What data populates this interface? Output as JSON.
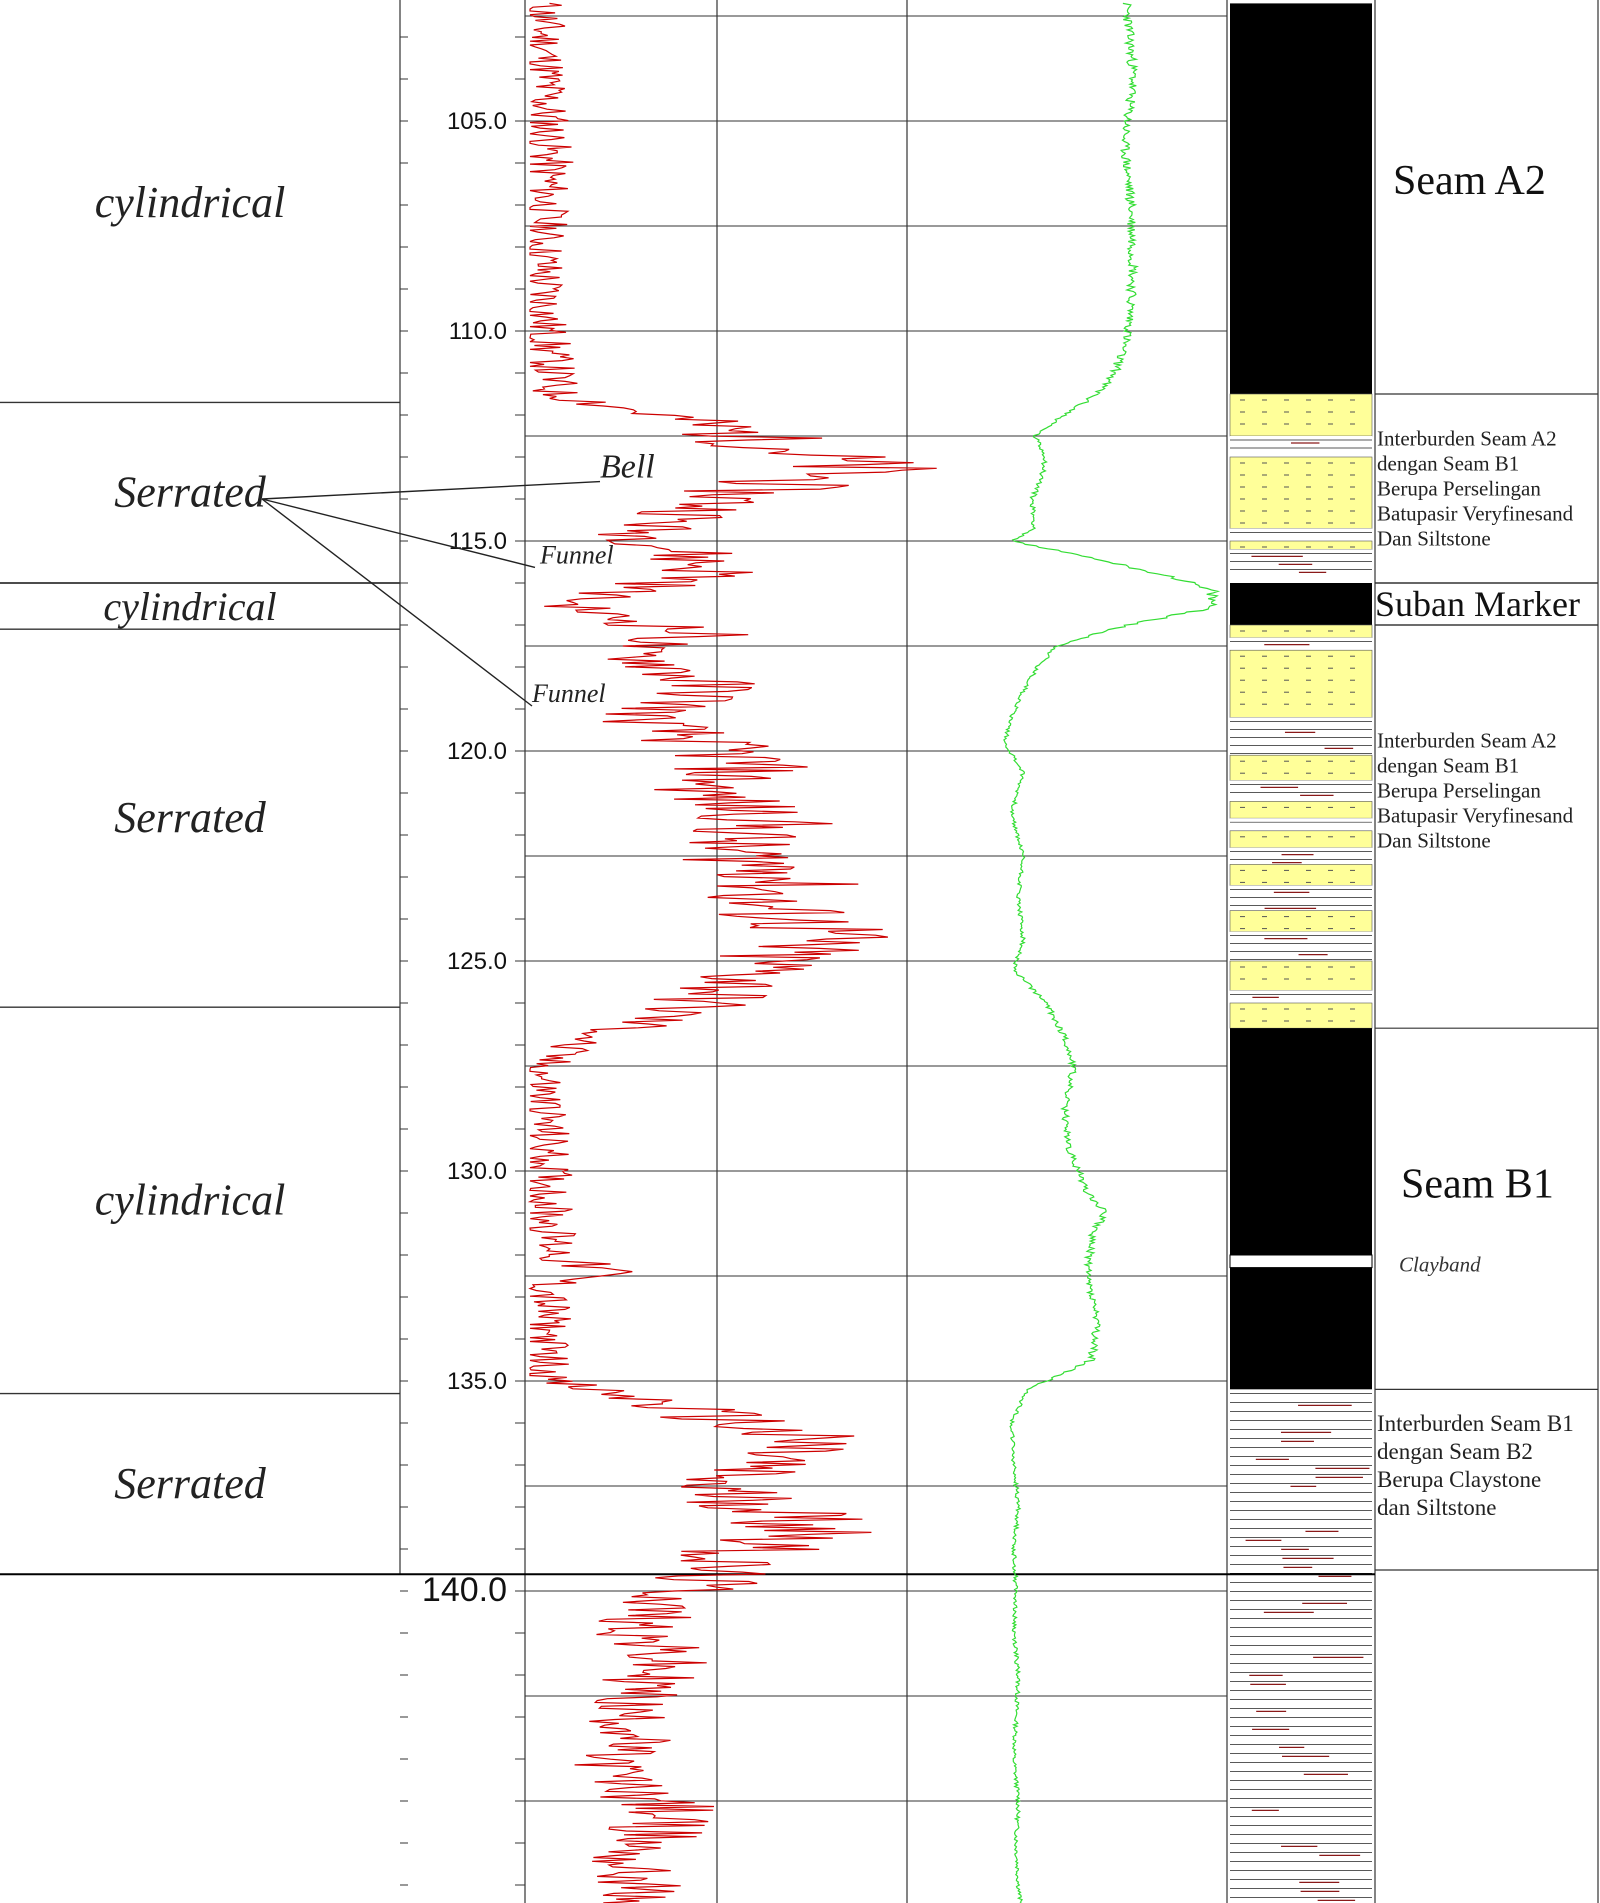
{
  "chart_data": {
    "type": "line",
    "title": "",
    "depth_axis": {
      "min": 102.2,
      "max": 147.5,
      "unit": "m",
      "tick_labels": [
        "105.0",
        "110.0",
        "115.0",
        "120.0",
        "125.0",
        "130.0",
        "135.0",
        "140.0"
      ]
    },
    "series": [
      {
        "key": "red_log",
        "color": "#cc0000",
        "points": [
          [
            102.2,
            0.04
          ],
          [
            104.0,
            0.05
          ],
          [
            106.0,
            0.06
          ],
          [
            108.0,
            0.04
          ],
          [
            110.0,
            0.05
          ],
          [
            111.5,
            0.08
          ],
          [
            112.2,
            0.55
          ],
          [
            112.8,
            0.85
          ],
          [
            113.3,
            1.05
          ],
          [
            113.8,
            0.7
          ],
          [
            114.3,
            0.55
          ],
          [
            114.8,
            0.35
          ],
          [
            115.3,
            0.5
          ],
          [
            115.8,
            0.6
          ],
          [
            116.2,
            0.3
          ],
          [
            116.5,
            0.12
          ],
          [
            116.8,
            0.25
          ],
          [
            117.2,
            0.55
          ],
          [
            117.6,
            0.3
          ],
          [
            118.0,
            0.45
          ],
          [
            118.6,
            0.6
          ],
          [
            119.2,
            0.35
          ],
          [
            119.8,
            0.55
          ],
          [
            120.3,
            0.7
          ],
          [
            121.0,
            0.55
          ],
          [
            121.6,
            0.78
          ],
          [
            122.3,
            0.62
          ],
          [
            123.0,
            0.85
          ],
          [
            123.6,
            0.72
          ],
          [
            124.3,
            0.95
          ],
          [
            124.9,
            0.78
          ],
          [
            125.5,
            0.7
          ],
          [
            126.0,
            0.55
          ],
          [
            126.5,
            0.35
          ],
          [
            127.0,
            0.12
          ],
          [
            127.5,
            0.04
          ],
          [
            129.0,
            0.05
          ],
          [
            130.5,
            0.06
          ],
          [
            131.5,
            0.07
          ],
          [
            132.1,
            0.1
          ],
          [
            132.4,
            0.25
          ],
          [
            132.7,
            0.06
          ],
          [
            134.0,
            0.05
          ],
          [
            135.0,
            0.06
          ],
          [
            135.5,
            0.4
          ],
          [
            136.0,
            0.68
          ],
          [
            136.5,
            0.88
          ],
          [
            137.0,
            0.72
          ],
          [
            137.5,
            0.55
          ],
          [
            138.0,
            0.78
          ],
          [
            138.6,
            0.95
          ],
          [
            139.2,
            0.62
          ],
          [
            139.8,
            0.55
          ],
          [
            140.4,
            0.4
          ],
          [
            141.0,
            0.35
          ],
          [
            141.6,
            0.42
          ],
          [
            142.2,
            0.38
          ],
          [
            142.8,
            0.3
          ],
          [
            143.4,
            0.35
          ],
          [
            144.0,
            0.25
          ],
          [
            144.6,
            0.3
          ],
          [
            145.2,
            0.45
          ],
          [
            145.8,
            0.4
          ],
          [
            146.4,
            0.3
          ],
          [
            147.0,
            0.35
          ],
          [
            147.5,
            0.32
          ]
        ]
      },
      {
        "key": "green_log",
        "color": "#33dd33",
        "points": [
          [
            102.2,
            0.55
          ],
          [
            104.0,
            0.58
          ],
          [
            105.5,
            0.54
          ],
          [
            107.0,
            0.57
          ],
          [
            108.5,
            0.58
          ],
          [
            110.0,
            0.56
          ],
          [
            111.0,
            0.5
          ],
          [
            111.5,
            0.42
          ],
          [
            112.0,
            0.28
          ],
          [
            112.5,
            0.15
          ],
          [
            113.0,
            0.2
          ],
          [
            113.5,
            0.18
          ],
          [
            114.0,
            0.14
          ],
          [
            114.7,
            0.15
          ],
          [
            115.0,
            0.05
          ],
          [
            115.4,
            0.4
          ],
          [
            115.9,
            0.78
          ],
          [
            116.2,
            0.92
          ],
          [
            116.6,
            0.92
          ],
          [
            117.0,
            0.55
          ],
          [
            117.5,
            0.25
          ],
          [
            118.0,
            0.16
          ],
          [
            118.6,
            0.1
          ],
          [
            119.2,
            0.05
          ],
          [
            119.8,
            0.02
          ],
          [
            120.5,
            0.1
          ],
          [
            121.5,
            0.05
          ],
          [
            122.5,
            0.1
          ],
          [
            123.5,
            0.08
          ],
          [
            124.5,
            0.1
          ],
          [
            125.2,
            0.06
          ],
          [
            126.0,
            0.2
          ],
          [
            126.8,
            0.28
          ],
          [
            127.5,
            0.32
          ],
          [
            128.5,
            0.28
          ],
          [
            129.5,
            0.3
          ],
          [
            130.5,
            0.38
          ],
          [
            131.0,
            0.46
          ],
          [
            131.5,
            0.4
          ],
          [
            132.5,
            0.38
          ],
          [
            133.5,
            0.42
          ],
          [
            134.5,
            0.4
          ],
          [
            135.2,
            0.12
          ],
          [
            136.0,
            0.05
          ],
          [
            137.0,
            0.06
          ],
          [
            138.0,
            0.08
          ],
          [
            139.0,
            0.06
          ],
          [
            140.0,
            0.07
          ],
          [
            141.0,
            0.06
          ],
          [
            142.0,
            0.08
          ],
          [
            143.0,
            0.07
          ],
          [
            144.0,
            0.06
          ],
          [
            145.0,
            0.08
          ],
          [
            146.0,
            0.07
          ],
          [
            147.0,
            0.08
          ],
          [
            147.5,
            0.09
          ]
        ]
      }
    ],
    "log_shapes": [
      {
        "label": "cylindrical",
        "top": 102.2,
        "bottom": 111.7
      },
      {
        "label": "Serrated",
        "top": 111.7,
        "bottom": 116.0
      },
      {
        "label": "cylindrical",
        "top": 116.0,
        "bottom": 117.1
      },
      {
        "label": "Serrated",
        "top": 117.1,
        "bottom": 126.1
      },
      {
        "label": "cylindrical",
        "top": 126.1,
        "bottom": 135.3
      },
      {
        "label": "Serrated",
        "top": 135.3,
        "bottom": 139.6
      }
    ],
    "annotations": [
      {
        "label": "Bell",
        "depth": 113.3
      },
      {
        "label": "Funnel",
        "depth": 115.2
      },
      {
        "label": "Funnel",
        "depth": 118.5
      }
    ],
    "lithology": [
      {
        "type": "coal",
        "top": 102.2,
        "bottom": 111.5
      },
      {
        "type": "sandstone",
        "top": 111.5,
        "bottom": 112.5
      },
      {
        "type": "siltstone",
        "top": 112.5,
        "bottom": 113.0
      },
      {
        "type": "sandstone",
        "top": 113.0,
        "bottom": 114.7
      },
      {
        "type": "siltstone",
        "top": 114.7,
        "bottom": 115.0
      },
      {
        "type": "sandstone",
        "top": 115.0,
        "bottom": 115.2
      },
      {
        "type": "siltstone",
        "top": 115.2,
        "bottom": 115.8
      },
      {
        "type": "coal",
        "top": 116.0,
        "bottom": 117.0
      },
      {
        "type": "sandstone",
        "top": 117.0,
        "bottom": 117.3
      },
      {
        "type": "siltstone",
        "top": 117.3,
        "bottom": 117.6
      },
      {
        "type": "sandstone",
        "top": 117.6,
        "bottom": 119.2
      },
      {
        "type": "siltstone",
        "top": 119.2,
        "bottom": 120.1
      },
      {
        "type": "sandstone",
        "top": 120.1,
        "bottom": 120.7
      },
      {
        "type": "siltstone",
        "top": 120.7,
        "bottom": 121.2
      },
      {
        "type": "sandstone",
        "top": 121.2,
        "bottom": 121.6
      },
      {
        "type": "siltstone",
        "top": 121.6,
        "bottom": 121.9
      },
      {
        "type": "sandstone",
        "top": 121.9,
        "bottom": 122.3
      },
      {
        "type": "siltstone",
        "top": 122.3,
        "bottom": 122.7
      },
      {
        "type": "sandstone",
        "top": 122.7,
        "bottom": 123.2
      },
      {
        "type": "siltstone",
        "top": 123.2,
        "bottom": 123.8
      },
      {
        "type": "sandstone",
        "top": 123.8,
        "bottom": 124.3
      },
      {
        "type": "siltstone",
        "top": 124.3,
        "bottom": 125.0
      },
      {
        "type": "sandstone",
        "top": 125.0,
        "bottom": 125.7
      },
      {
        "type": "siltstone",
        "top": 125.7,
        "bottom": 126.0
      },
      {
        "type": "sandstone",
        "top": 126.0,
        "bottom": 126.6
      },
      {
        "type": "coal",
        "top": 126.6,
        "bottom": 132.0
      },
      {
        "type": "clayband",
        "top": 132.0,
        "bottom": 132.3
      },
      {
        "type": "coal",
        "top": 132.3,
        "bottom": 135.2
      },
      {
        "type": "claystone",
        "top": 135.2,
        "bottom": 147.5
      }
    ],
    "units": [
      {
        "lines": [
          "Seam A2"
        ],
        "top": 102.2,
        "bottom": 111.5,
        "style": "large"
      },
      {
        "lines": [
          "Interburden Seam A2",
          "dengan Seam B1",
          "Berupa Perselingan",
          "Batupasir Veryfinesand",
          "Dan Siltstone"
        ],
        "top": 111.5,
        "bottom": 116.0,
        "style": "small"
      },
      {
        "lines": [
          "Suban Marker"
        ],
        "top": 116.0,
        "bottom": 117.0,
        "style": "medium"
      },
      {
        "lines": [
          "Interburden Seam A2",
          "dengan Seam B1",
          "Berupa Perselingan",
          "Batupasir Veryfinesand",
          "Dan Siltstone"
        ],
        "top": 117.0,
        "bottom": 126.6,
        "style": "small"
      },
      {
        "lines": [
          "Seam B1"
        ],
        "top": 126.6,
        "bottom": 135.2,
        "style": "large"
      },
      {
        "lines": [
          "Interburden Seam B1",
          "dengan Seam B2",
          "Berupa Claystone",
          " dan Siltstone"
        ],
        "top": 135.2,
        "bottom": 139.5,
        "style": "small"
      }
    ],
    "clayband_label": "Clayband",
    "colors": {
      "coal": "#000000",
      "sandstone": "#ffff99",
      "grid": "#333333"
    }
  }
}
